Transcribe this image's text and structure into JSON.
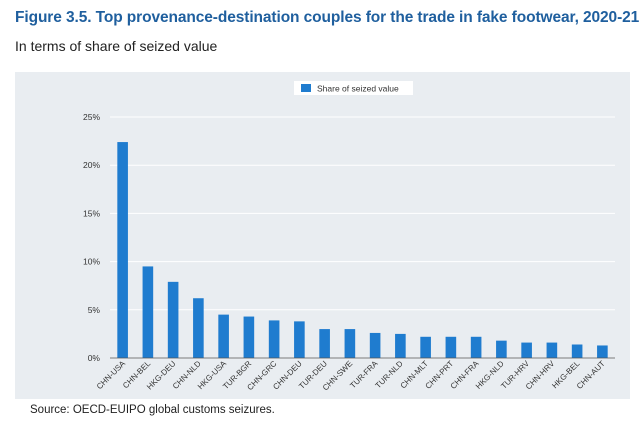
{
  "figure": {
    "title": "Figure 3.5. Top provenance-destination couples for the trade in fake footwear, 2020-21",
    "subtitle": "In terms of share of seized value",
    "source": "Source: OECD-EUIPO global customs seizures."
  },
  "chart_data": {
    "type": "bar",
    "categories": [
      "CHN-USA",
      "CHN-BEL",
      "HKG-DEU",
      "CHN-NLD",
      "HKG-USA",
      "TUR-BGR",
      "CHN-GRC",
      "CHN-DEU",
      "TUR-DEU",
      "CHN-SWE",
      "TUR-FRA",
      "TUR-NLD",
      "CHN-MLT",
      "CHN-PRT",
      "CHN-FRA",
      "HKG-NLD",
      "TUR-HRV",
      "CHN-HRV",
      "HKG-BEL",
      "CHN-AUT"
    ],
    "series": [
      {
        "name": "Share of seized value",
        "values": [
          22.4,
          9.5,
          7.9,
          6.2,
          4.5,
          4.3,
          3.9,
          3.8,
          3.0,
          3.0,
          2.6,
          2.5,
          2.2,
          2.2,
          2.2,
          1.8,
          1.6,
          1.6,
          1.4,
          1.3
        ]
      }
    ],
    "y_ticks": [
      "0%",
      "5%",
      "10%",
      "15%",
      "20%",
      "25%"
    ],
    "ylim": [
      0,
      25
    ],
    "grid": true,
    "legend_position": "top-center",
    "bar_color": "#1f7ccf"
  }
}
